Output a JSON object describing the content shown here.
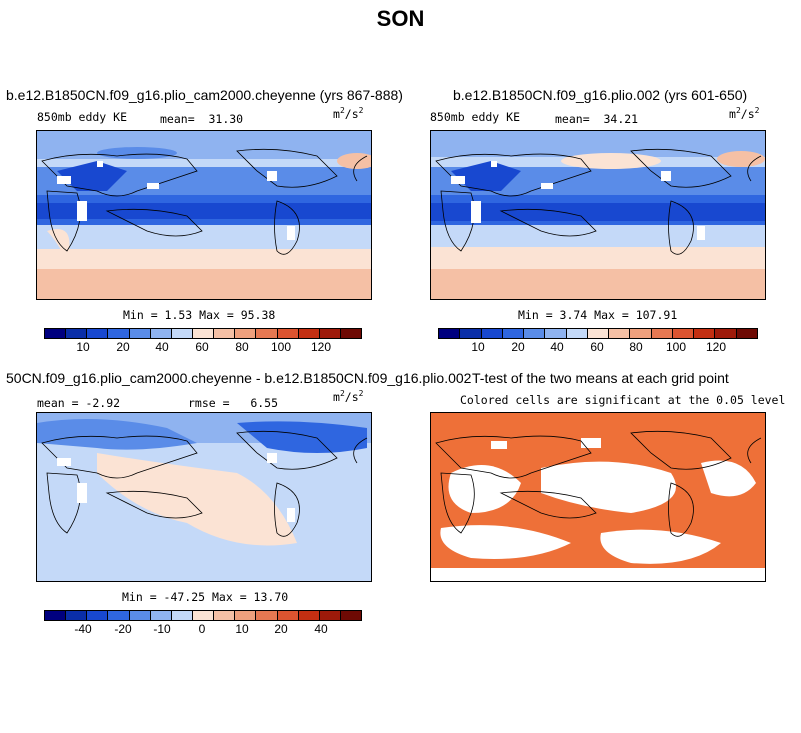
{
  "title": "SON",
  "panels": [
    {
      "title": "b.e12.B1850CN.f09_g16.plio_cam2000.cheyenne (yrs 867-888)",
      "left_label": "850mb eddy KE",
      "mean_label": "mean=",
      "mean_value": "31.30",
      "units_base": "m",
      "units_exp1": "2",
      "units_mid": "/s",
      "units_exp2": "2",
      "minmax": "Min =    1.53 Max =   95.38",
      "colorbar_ticks": [
        "10",
        "20",
        "40",
        "60",
        "80",
        "100",
        "120"
      ]
    },
    {
      "title": "b.e12.B1850CN.f09_g16.plio.002 (yrs 601-650)",
      "left_label": "850mb eddy KE",
      "mean_label": "mean=",
      "mean_value": "34.21",
      "units_base": "m",
      "units_exp1": "2",
      "units_mid": "/s",
      "units_exp2": "2",
      "minmax": "Min =    3.74 Max =  107.91",
      "colorbar_ticks": [
        "10",
        "20",
        "40",
        "60",
        "80",
        "100",
        "120"
      ]
    },
    {
      "title": "50CN.f09_g16.plio_cam2000.cheyenne - b.e12.B1850CN.f09_g16.plio.002",
      "left_label": "mean =   -2.92",
      "rmse_label": "rmse =",
      "rmse_value": "6.55",
      "units_base": "m",
      "units_exp1": "2",
      "units_mid": "/s",
      "units_exp2": "2",
      "minmax": "Min = -47.25 Max =  13.70",
      "colorbar_ticks": [
        "-40",
        "-20",
        "-10",
        "0",
        "10",
        "20",
        "40"
      ]
    },
    {
      "title": "T-test of the two means at each grid point",
      "subtitle": "Colored cells are significant at the 0.05 level"
    }
  ],
  "colors": {
    "colorbar": [
      "#00007f",
      "#0a2ea8",
      "#1848d0",
      "#2f66e0",
      "#5a8ce8",
      "#8fb3f0",
      "#c4d9f8",
      "#fbe3d4",
      "#f5c0a5",
      "#efa07d",
      "#e67852",
      "#dc5430",
      "#c32f12",
      "#9e1a0a",
      "#6e0a04"
    ],
    "ttest_fill": "#ee7038"
  }
}
